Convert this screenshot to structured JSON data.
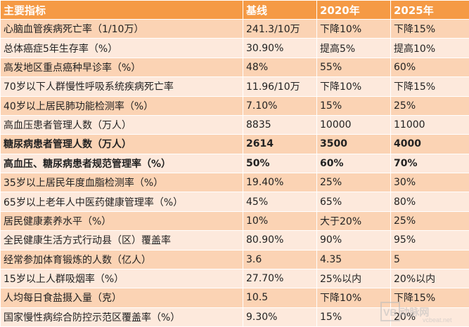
{
  "table": {
    "headers": [
      "主要指标",
      "基线",
      "2020年",
      "2025年"
    ],
    "rows": [
      {
        "indicator": "心脑血管疾病死亡率（1/10万）",
        "baseline": "241.3/10万",
        "y2020": "下降10%",
        "y2025": "下降15%",
        "bold": false
      },
      {
        "indicator": "总体癌症5年生存率（%）",
        "baseline": "30.90%",
        "y2020": "提高5%",
        "y2025": "提高10%",
        "bold": false
      },
      {
        "indicator": "高发地区重点癌种早诊率（%）",
        "baseline": "48%",
        "y2020": "55%",
        "y2025": "60%",
        "bold": false
      },
      {
        "indicator": "70岁以下人群慢性呼吸系统疾病死亡率",
        "baseline": "11.96/10万",
        "y2020": "下降10%",
        "y2025": "下降15%",
        "bold": false
      },
      {
        "indicator": "40岁以上居民肺功能检测率（%）",
        "baseline": "7.10%",
        "y2020": "15%",
        "y2025": "25%",
        "bold": false
      },
      {
        "indicator": "高血压患者管理人数（万人）",
        "baseline": "8835",
        "y2020": "10000",
        "y2025": "11000",
        "bold": false
      },
      {
        "indicator": "糖尿病患者管理人数（万人）",
        "baseline": "2614",
        "y2020": "3500",
        "y2025": "4000",
        "bold": true
      },
      {
        "indicator": "高血压、糖尿病患者规范管理率（%）",
        "baseline": "50%",
        "y2020": "60%",
        "y2025": "70%",
        "bold": true
      },
      {
        "indicator": "35岁以上居民年度血脂检测率（%）",
        "baseline": "19.40%",
        "y2020": "25%",
        "y2025": "30%",
        "bold": false
      },
      {
        "indicator": "65岁以上老年人中医药健康管理率（%）",
        "baseline": "45%",
        "y2020": "65%",
        "y2025": "80%",
        "bold": false
      },
      {
        "indicator": "居民健康素养水平（%）",
        "baseline": "10%",
        "y2020": "大于20%",
        "y2025": "25%",
        "bold": false
      },
      {
        "indicator": "全民健康生活方式行动县（区）覆盖率",
        "baseline": "80.90%",
        "y2020": "90%",
        "y2025": "95%",
        "bold": false
      },
      {
        "indicator": "经常参加体育锻炼的人数（亿人）",
        "baseline": "3.6",
        "y2020": "4.35",
        "y2025": "5",
        "bold": false
      },
      {
        "indicator": "15岁以上人群吸烟率（%）",
        "baseline": "27.70%",
        "y2020": "25%以内",
        "y2025": "20%以内",
        "bold": false
      },
      {
        "indicator": "人均每日食盐摄入量（克）",
        "baseline": "10.5",
        "y2020": "下降10%",
        "y2025": "下降15%",
        "bold": false
      },
      {
        "indicator": "国家慢性病综合防控示范区覆盖率（%）",
        "baseline": "9.30%",
        "y2020": "15%",
        "y2025": "20%",
        "bold": false
      }
    ]
  },
  "watermark": {
    "text": "VB 动脉网",
    "subtext": "vcbeat.net",
    "color": "#bdbdbd"
  }
}
